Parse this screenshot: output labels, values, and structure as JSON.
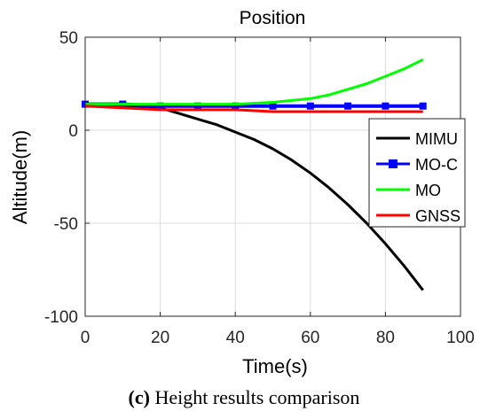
{
  "chart_data": {
    "type": "line",
    "title": "Position",
    "xlabel": "Time(s)",
    "ylabel": "Altitude(m)",
    "xlim": [
      0,
      100
    ],
    "ylim": [
      -100,
      50
    ],
    "xticks": [
      "0",
      "20",
      "40",
      "60",
      "80",
      "100"
    ],
    "yticks": [
      "50",
      "0",
      "-50",
      "-100"
    ],
    "grid": true,
    "legend_position": "right",
    "series": [
      {
        "name": "MIMU",
        "color": "#000000",
        "style": "line",
        "x": [
          0,
          10,
          20,
          25,
          30,
          35,
          40,
          45,
          50,
          55,
          60,
          65,
          70,
          75,
          80,
          85,
          90
        ],
        "y": [
          13,
          13,
          12,
          9,
          6,
          3,
          -1,
          -5,
          -10,
          -16,
          -23,
          -31,
          -40,
          -50,
          -61,
          -73,
          -86
        ]
      },
      {
        "name": "MO-C",
        "color": "#0000ff",
        "style": "marker",
        "x": [
          0,
          10,
          20,
          30,
          40,
          50,
          60,
          70,
          80,
          90
        ],
        "y": [
          14,
          14,
          13,
          13,
          13,
          13,
          13,
          13,
          13,
          13
        ]
      },
      {
        "name": "MO",
        "color": "#00ff00",
        "style": "line",
        "x": [
          0,
          10,
          20,
          30,
          40,
          50,
          55,
          60,
          65,
          70,
          75,
          80,
          85,
          90
        ],
        "y": [
          14,
          14,
          14,
          14,
          14,
          15,
          16,
          17,
          19,
          22,
          25,
          29,
          33,
          38
        ]
      },
      {
        "name": "GNSS",
        "color": "#ff0000",
        "style": "line",
        "x": [
          0,
          10,
          20,
          30,
          40,
          50,
          60,
          70,
          80,
          90
        ],
        "y": [
          13,
          12,
          11,
          11,
          11,
          10,
          10,
          10,
          10,
          10
        ]
      }
    ]
  },
  "caption": {
    "label": "(c)",
    "text": " Height results comparison"
  }
}
